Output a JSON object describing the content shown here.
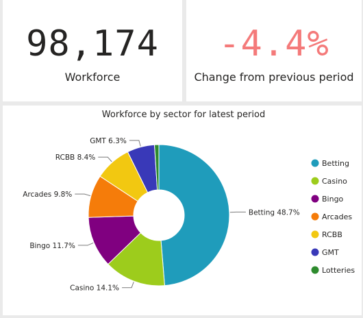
{
  "kpis": [
    {
      "value": "98,174",
      "label": "Workforce",
      "color": "#252423"
    },
    {
      "value": "-4.4%",
      "label": "Change from previous period",
      "color": "#f47a7a"
    }
  ],
  "chart_data": {
    "type": "pie",
    "donut": true,
    "title": "Workforce by sector for latest period",
    "legend_position": "right",
    "slices": [
      {
        "name": "Betting",
        "value": 48.7,
        "label": "Betting 48.7%",
        "color": "#1f9cbb"
      },
      {
        "name": "Casino",
        "value": 14.1,
        "label": "Casino 14.1%",
        "color": "#9dcc1c"
      },
      {
        "name": "Bingo",
        "value": 11.7,
        "label": "Bingo 11.7%",
        "color": "#800080"
      },
      {
        "name": "Arcades",
        "value": 9.8,
        "label": "Arcades 9.8%",
        "color": "#f57c0a"
      },
      {
        "name": "RCBB",
        "value": 8.4,
        "label": "RCBB 8.4%",
        "color": "#f2c811"
      },
      {
        "name": "GMT",
        "value": 6.3,
        "label": "GMT 6.3%",
        "color": "#3939b8"
      },
      {
        "name": "Lotteries",
        "value": 1.0,
        "label": "",
        "color": "#2e8b2e"
      }
    ]
  }
}
